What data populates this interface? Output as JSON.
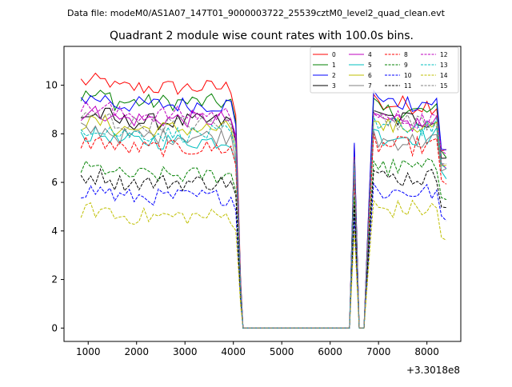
{
  "chart_data": {
    "type": "line",
    "suptitle": "Data file: modeM0/AS1A07_147T01_9000003722_25539cztM0_level2_quad_clean.evt",
    "title": "Quadrant 2 module wise count rates with 100.0s bins.",
    "xlabel": "",
    "ylabel": "",
    "x_offset_label": "+3.3018e8",
    "xlim": [
      500,
      8700
    ],
    "ylim": [
      -0.55,
      11.6
    ],
    "xticks": [
      1000,
      2000,
      3000,
      4000,
      5000,
      6000,
      7000,
      8000
    ],
    "yticks": [
      0,
      2,
      4,
      6,
      8,
      10
    ],
    "legend_position": "top-right",
    "legend_columns": 4,
    "x_segments": [
      {
        "from": 850,
        "to": 4050,
        "step": 100
      },
      {
        "from": 4200,
        "to": 6400,
        "step": 200
      },
      {
        "from": 6400,
        "to": 8400,
        "step": 100
      }
    ],
    "series": [
      {
        "name": "0",
        "color": "#ff0000",
        "dash": false,
        "level": 9.9,
        "gap_level": 9.2,
        "end_level": 7.4
      },
      {
        "name": "1",
        "color": "#008000",
        "dash": false,
        "level": 9.3,
        "gap_level": 8.9,
        "end_level": 7.2
      },
      {
        "name": "2",
        "color": "#0000ff",
        "dash": false,
        "level": 9.2,
        "gap_level": 9.3,
        "end_level": 7.3
      },
      {
        "name": "3",
        "color": "#000000",
        "dash": false,
        "level": 8.5,
        "gap_level": 8.6,
        "end_level": 7.0
      },
      {
        "name": "4",
        "color": "#bf00bf",
        "dash": false,
        "level": 8.6,
        "gap_level": 8.4,
        "end_level": 6.8
      },
      {
        "name": "5",
        "color": "#00bfbf",
        "dash": false,
        "level": 7.7,
        "gap_level": 7.9,
        "end_level": 6.3
      },
      {
        "name": "6",
        "color": "#bfbf00",
        "dash": false,
        "level": 8.2,
        "gap_level": 8.3,
        "end_level": 6.6
      },
      {
        "name": "7",
        "color": "#808080",
        "dash": false,
        "level": 7.9,
        "gap_level": 7.7,
        "end_level": 6.4
      },
      {
        "name": "8",
        "color": "#ff0000",
        "dash": true,
        "level": 7.4,
        "gap_level": 7.5,
        "end_level": 6.0
      },
      {
        "name": "9",
        "color": "#008000",
        "dash": true,
        "level": 6.3,
        "gap_level": 6.6,
        "end_level": 5.5
      },
      {
        "name": "10",
        "color": "#0000ff",
        "dash": true,
        "level": 5.4,
        "gap_level": 5.6,
        "end_level": 4.4
      },
      {
        "name": "11",
        "color": "#000000",
        "dash": true,
        "level": 6.0,
        "gap_level": 6.2,
        "end_level": 5.2
      },
      {
        "name": "12",
        "color": "#bf00bf",
        "dash": true,
        "level": 8.8,
        "gap_level": 8.6,
        "end_level": 7.1
      },
      {
        "name": "13",
        "color": "#00bfbf",
        "dash": true,
        "level": 8.0,
        "gap_level": 8.3,
        "end_level": 6.5
      },
      {
        "name": "14",
        "color": "#bfbf00",
        "dash": true,
        "level": 4.6,
        "gap_level": 4.9,
        "end_level": 3.7
      },
      {
        "name": "15",
        "color": "#808080",
        "dash": true,
        "level": 8.4,
        "gap_level": 8.5,
        "end_level": 6.9
      }
    ]
  }
}
